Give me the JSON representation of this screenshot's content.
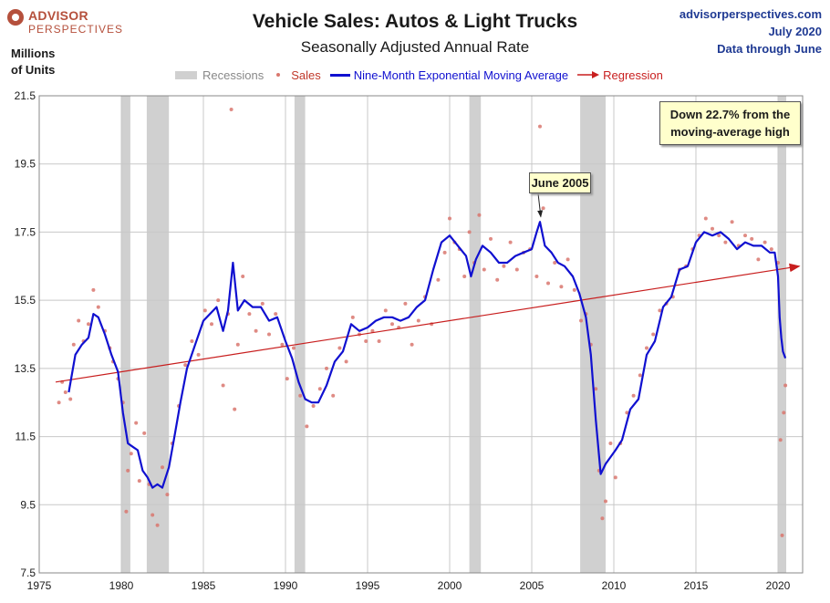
{
  "logo": {
    "line1": "ADVISOR",
    "line2": "PERSPECTIVES"
  },
  "title": "Vehicle Sales: Autos & Light Trucks",
  "subtitle": "Seasonally Adjusted Annual Rate",
  "source": {
    "site": "advisorperspectives.com",
    "date": "July 2020",
    "through": "Data through June"
  },
  "ylabel": {
    "line1": "Millions",
    "line2": "of Units"
  },
  "legend": {
    "recessions": "Recessions",
    "sales": "Sales",
    "ema": "Nine-Month Exponential Moving Average",
    "regression": "Regression"
  },
  "annotations": {
    "june2005": "June 2005",
    "down_line1": "Down 22.7% from the",
    "down_line2": "moving-average high"
  },
  "colors": {
    "sales": "#d9776e",
    "ema": "#1010d0",
    "regression": "#c81e1e",
    "recession": "#d0d0d0"
  },
  "chart_data": {
    "type": "line",
    "title": "Vehicle Sales: Autos & Light Trucks",
    "subtitle": "Seasonally Adjusted Annual Rate",
    "ylabel": "Millions of Units",
    "xlim": [
      1975,
      2021.5
    ],
    "ylim": [
      7.5,
      21.5
    ],
    "xticks": [
      1975,
      1980,
      1985,
      1990,
      1995,
      2000,
      2005,
      2010,
      2015,
      2020
    ],
    "yticks": [
      7.5,
      9.5,
      11.5,
      13.5,
      15.5,
      17.5,
      19.5,
      21.5
    ],
    "grid": true,
    "legend_position": "top",
    "recessions": [
      [
        1980.0,
        1980.55
      ],
      [
        1981.55,
        1982.9
      ],
      [
        1990.55,
        1991.2
      ],
      [
        2001.2,
        2001.9
      ],
      [
        2007.95,
        2009.5
      ],
      [
        2020.0,
        2020.5
      ]
    ],
    "regression": {
      "x": [
        1976.0,
        2021.3
      ],
      "y": [
        13.1,
        16.5
      ]
    },
    "series": [
      {
        "name": "Nine-Month Exponential Moving Average",
        "x": [
          1976.8,
          1977.2,
          1977.6,
          1978.0,
          1978.3,
          1978.6,
          1979.0,
          1979.4,
          1979.8,
          1980.1,
          1980.4,
          1980.7,
          1981.0,
          1981.3,
          1981.6,
          1981.9,
          1982.2,
          1982.5,
          1982.9,
          1983.2,
          1983.6,
          1984.0,
          1984.5,
          1985.0,
          1985.4,
          1985.8,
          1986.2,
          1986.5,
          1986.8,
          1987.1,
          1987.5,
          1988.0,
          1988.5,
          1989.0,
          1989.5,
          1990.0,
          1990.4,
          1990.8,
          1991.2,
          1991.6,
          1992.0,
          1992.5,
          1993.0,
          1993.5,
          1994.0,
          1994.5,
          1995.0,
          1995.5,
          1996.0,
          1996.5,
          1997.0,
          1997.5,
          1998.0,
          1998.5,
          1999.0,
          1999.5,
          2000.0,
          2000.5,
          2001.0,
          2001.3,
          2001.6,
          2002.0,
          2002.5,
          2003.0,
          2003.5,
          2004.0,
          2004.5,
          2005.0,
          2005.3,
          2005.5,
          2005.8,
          2006.2,
          2006.6,
          2007.0,
          2007.5,
          2007.9,
          2008.3,
          2008.6,
          2008.9,
          2009.2,
          2009.5,
          2009.8,
          2010.1,
          2010.5,
          2011.0,
          2011.5,
          2012.0,
          2012.5,
          2013.0,
          2013.5,
          2014.0,
          2014.5,
          2015.0,
          2015.5,
          2016.0,
          2016.5,
          2017.0,
          2017.5,
          2018.0,
          2018.5,
          2019.0,
          2019.5,
          2019.8,
          2020.0,
          2020.1,
          2020.2,
          2020.3,
          2020.45
        ],
        "y": [
          12.8,
          13.9,
          14.2,
          14.4,
          15.1,
          15.0,
          14.5,
          13.9,
          13.4,
          12.2,
          11.3,
          11.2,
          11.1,
          10.5,
          10.3,
          10.0,
          10.1,
          10.0,
          10.6,
          11.4,
          12.5,
          13.5,
          14.2,
          14.9,
          15.1,
          15.3,
          14.6,
          15.2,
          16.6,
          15.2,
          15.5,
          15.3,
          15.3,
          14.9,
          15.0,
          14.3,
          13.8,
          13.1,
          12.6,
          12.5,
          12.5,
          13.0,
          13.7,
          14.0,
          14.8,
          14.6,
          14.7,
          14.9,
          15.0,
          15.0,
          14.9,
          15.0,
          15.3,
          15.5,
          16.4,
          17.2,
          17.4,
          17.1,
          16.8,
          16.2,
          16.7,
          17.1,
          16.9,
          16.6,
          16.6,
          16.8,
          16.9,
          17.0,
          17.5,
          17.8,
          17.1,
          16.9,
          16.6,
          16.5,
          16.2,
          15.7,
          15.0,
          13.9,
          12.0,
          10.4,
          10.7,
          10.9,
          11.1,
          11.4,
          12.3,
          12.6,
          13.9,
          14.3,
          15.3,
          15.6,
          16.4,
          16.5,
          17.2,
          17.5,
          17.4,
          17.5,
          17.3,
          17.0,
          17.2,
          17.1,
          17.1,
          16.9,
          16.9,
          16.2,
          15.0,
          14.4,
          14.0,
          13.8
        ]
      },
      {
        "name": "Sales",
        "x": [
          1976.2,
          1976.4,
          1976.6,
          1976.9,
          1977.1,
          1977.4,
          1977.7,
          1978.0,
          1978.3,
          1978.6,
          1979.0,
          1979.3,
          1979.5,
          1979.8,
          1980.1,
          1980.3,
          1980.4,
          1980.6,
          1980.9,
          1981.1,
          1981.4,
          1981.7,
          1981.9,
          1982.2,
          1982.5,
          1982.8,
          1983.1,
          1983.5,
          1983.9,
          1984.3,
          1984.7,
          1985.1,
          1985.5,
          1985.9,
          1986.2,
          1986.5,
          1986.7,
          1986.9,
          1987.1,
          1987.4,
          1987.8,
          1988.2,
          1988.6,
          1989.0,
          1989.4,
          1989.8,
          1990.1,
          1990.5,
          1990.9,
          1991.3,
          1991.7,
          1992.1,
          1992.5,
          1992.9,
          1993.3,
          1993.7,
          1994.1,
          1994.5,
          1994.9,
          1995.3,
          1995.7,
          1996.1,
          1996.5,
          1996.9,
          1997.3,
          1997.7,
          1998.1,
          1998.5,
          1998.9,
          1999.3,
          1999.7,
          2000.0,
          2000.3,
          2000.6,
          2000.9,
          2001.2,
          2001.5,
          2001.8,
          2002.1,
          2002.5,
          2002.9,
          2003.3,
          2003.7,
          2004.1,
          2004.5,
          2004.9,
          2005.3,
          2005.5,
          2005.7,
          2006.0,
          2006.4,
          2006.8,
          2007.2,
          2007.6,
          2008.0,
          2008.3,
          2008.6,
          2008.9,
          2009.1,
          2009.3,
          2009.5,
          2009.8,
          2010.1,
          2010.4,
          2010.8,
          2011.2,
          2011.6,
          2012.0,
          2012.4,
          2012.8,
          2013.2,
          2013.6,
          2014.0,
          2014.4,
          2014.8,
          2015.2,
          2015.6,
          2016.0,
          2016.4,
          2016.8,
          2017.2,
          2017.6,
          2018.0,
          2018.4,
          2018.8,
          2019.2,
          2019.6,
          2020.0,
          2020.15,
          2020.25,
          2020.35,
          2020.45
        ],
        "y": [
          12.5,
          13.1,
          12.8,
          12.6,
          14.2,
          14.9,
          14.3,
          14.8,
          15.8,
          15.3,
          14.6,
          14.1,
          13.7,
          13.2,
          12.5,
          9.3,
          10.5,
          11.0,
          11.9,
          10.2,
          11.6,
          10.1,
          9.2,
          8.9,
          10.6,
          9.8,
          11.3,
          12.4,
          13.6,
          14.3,
          13.9,
          15.2,
          14.8,
          15.5,
          13.0,
          15.1,
          21.1,
          12.3,
          14.2,
          16.2,
          15.1,
          14.6,
          15.4,
          14.5,
          15.1,
          14.2,
          13.2,
          14.1,
          12.7,
          11.8,
          12.4,
          12.9,
          13.5,
          12.7,
          14.1,
          13.7,
          15.0,
          14.5,
          14.3,
          14.6,
          14.3,
          15.2,
          14.8,
          14.7,
          15.4,
          14.2,
          14.9,
          15.6,
          14.8,
          16.1,
          16.9,
          17.9,
          17.2,
          17.0,
          16.2,
          17.5,
          16.6,
          18.0,
          16.4,
          17.3,
          16.1,
          16.5,
          17.2,
          16.4,
          16.9,
          17.0,
          16.2,
          20.6,
          18.2,
          16.0,
          16.6,
          15.9,
          16.7,
          15.8,
          14.9,
          15.1,
          14.2,
          12.9,
          10.5,
          9.1,
          9.6,
          11.3,
          10.3,
          11.3,
          12.2,
          12.7,
          13.3,
          14.1,
          14.5,
          15.2,
          15.4,
          15.6,
          16.4,
          16.5,
          17.0,
          17.4,
          17.9,
          17.6,
          17.4,
          17.2,
          17.8,
          17.1,
          17.4,
          17.3,
          16.7,
          17.2,
          17.0,
          16.6,
          11.4,
          8.6,
          12.2,
          13.0
        ]
      }
    ]
  }
}
